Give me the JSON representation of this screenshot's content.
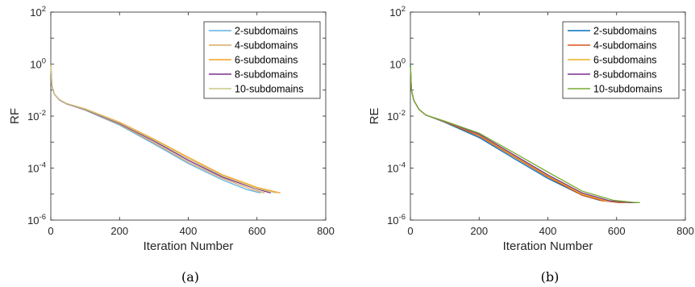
{
  "chart_data": [
    {
      "type": "line",
      "caption": "(a)",
      "ylabel": "RF",
      "xlabel": "Iteration Number",
      "yscale": "log",
      "xlim": [
        0,
        800
      ],
      "ylim": [
        1e-06,
        100
      ],
      "xticks": [
        "0",
        "200",
        "400",
        "600",
        "800"
      ],
      "yticks": [
        {
          "base": "10",
          "exp": "2"
        },
        {
          "base": "10",
          "exp": "0"
        },
        {
          "base": "10",
          "exp": "-2"
        },
        {
          "base": "10",
          "exp": "-4"
        },
        {
          "base": "10",
          "exp": "-6"
        }
      ],
      "legend_position": "top-right",
      "series": [
        {
          "name": "2-subdomains",
          "color": "#5fb3e6",
          "x": [
            0,
            3,
            10,
            25,
            45,
            100,
            200,
            300,
            400,
            500,
            570,
            610
          ],
          "y": [
            1.0,
            0.15,
            0.07,
            0.042,
            0.03,
            0.017,
            0.0045,
            0.00085,
            0.00015,
            3.5e-05,
            1.5e-05,
            1.1e-05
          ]
        },
        {
          "name": "4-subdomains",
          "color": "#d9a86a",
          "x": [
            0,
            3,
            10,
            25,
            45,
            100,
            200,
            300,
            400,
            500,
            580,
            622
          ],
          "y": [
            1.0,
            0.15,
            0.07,
            0.042,
            0.03,
            0.0175,
            0.0048,
            0.00095,
            0.00017,
            4e-05,
            1.6e-05,
            1.1e-05
          ]
        },
        {
          "name": "6-subdomains",
          "color": "#f5a020",
          "x": [
            0,
            3,
            10,
            25,
            45,
            100,
            200,
            300,
            400,
            500,
            600,
            668
          ],
          "y": [
            1.0,
            0.15,
            0.07,
            0.043,
            0.031,
            0.019,
            0.0058,
            0.0013,
            0.00026,
            5.5e-05,
            1.8e-05,
            1.1e-05
          ]
        },
        {
          "name": "8-subdomains",
          "color": "#7e2f8e",
          "x": [
            0,
            3,
            10,
            25,
            45,
            100,
            200,
            300,
            400,
            500,
            590,
            640
          ],
          "y": [
            1.0,
            0.15,
            0.07,
            0.042,
            0.03,
            0.018,
            0.0052,
            0.0011,
            0.0002,
            4.5e-05,
            1.7e-05,
            1.1e-05
          ]
        },
        {
          "name": "10-subdomains",
          "color": "#c8c887",
          "x": [
            0,
            3,
            10,
            25,
            45,
            100,
            200,
            300,
            400,
            500,
            595,
            655
          ],
          "y": [
            1.0,
            0.15,
            0.07,
            0.043,
            0.031,
            0.0185,
            0.0055,
            0.0012,
            0.00023,
            5e-05,
            1.7e-05,
            1.1e-05
          ]
        }
      ]
    },
    {
      "type": "line",
      "caption": "(b)",
      "ylabel": "RE",
      "xlabel": "Iteration Number",
      "yscale": "log",
      "xlim": [
        0,
        800
      ],
      "ylim": [
        1e-06,
        100
      ],
      "xticks": [
        "0",
        "200",
        "400",
        "600",
        "800"
      ],
      "yticks": [
        {
          "base": "10",
          "exp": "2"
        },
        {
          "base": "10",
          "exp": "0"
        },
        {
          "base": "10",
          "exp": "-2"
        },
        {
          "base": "10",
          "exp": "-4"
        },
        {
          "base": "10",
          "exp": "-6"
        }
      ],
      "legend_position": "top-right",
      "series": [
        {
          "name": "2-subdomains",
          "color": "#0072bd",
          "x": [
            0,
            3,
            10,
            25,
            45,
            100,
            200,
            300,
            400,
            500,
            550,
            600,
            612
          ],
          "y": [
            1.0,
            0.1,
            0.04,
            0.018,
            0.011,
            0.0058,
            0.0015,
            0.00024,
            4e-05,
            9e-06,
            5.8e-06,
            4.8e-06,
            4.7e-06
          ]
        },
        {
          "name": "4-subdomains",
          "color": "#d95319",
          "x": [
            0,
            3,
            10,
            25,
            45,
            100,
            200,
            300,
            400,
            500,
            560,
            610,
            625
          ],
          "y": [
            0.9,
            0.1,
            0.04,
            0.018,
            0.011,
            0.006,
            0.0017,
            0.00028,
            4.6e-05,
            9e-06,
            5.5e-06,
            4.7e-06,
            4.7e-06
          ]
        },
        {
          "name": "6-subdomains",
          "color": "#edb120",
          "x": [
            0,
            3,
            10,
            25,
            45,
            100,
            200,
            300,
            400,
            500,
            570,
            630,
            650
          ],
          "y": [
            0.9,
            0.1,
            0.04,
            0.018,
            0.011,
            0.0062,
            0.0019,
            0.0003,
            5e-05,
            1e-05,
            5.5e-06,
            4.7e-06,
            4.7e-06
          ]
        },
        {
          "name": "8-subdomains",
          "color": "#7e2f8e",
          "x": [
            0,
            3,
            10,
            25,
            45,
            100,
            200,
            300,
            400,
            500,
            580,
            640,
            660
          ],
          "y": [
            0.9,
            0.1,
            0.04,
            0.018,
            0.011,
            0.0063,
            0.002,
            0.00033,
            5.5e-05,
            1.1e-05,
            5.5e-06,
            4.7e-06,
            4.7e-06
          ]
        },
        {
          "name": "10-subdomains",
          "color": "#77ac30",
          "x": [
            0,
            3,
            10,
            25,
            45,
            100,
            200,
            300,
            400,
            500,
            590,
            650,
            668
          ],
          "y": [
            0.9,
            0.1,
            0.04,
            0.018,
            0.011,
            0.0064,
            0.0022,
            0.0004,
            7e-05,
            1.3e-05,
            5.8e-06,
            4.8e-06,
            4.7e-06
          ]
        }
      ]
    }
  ]
}
